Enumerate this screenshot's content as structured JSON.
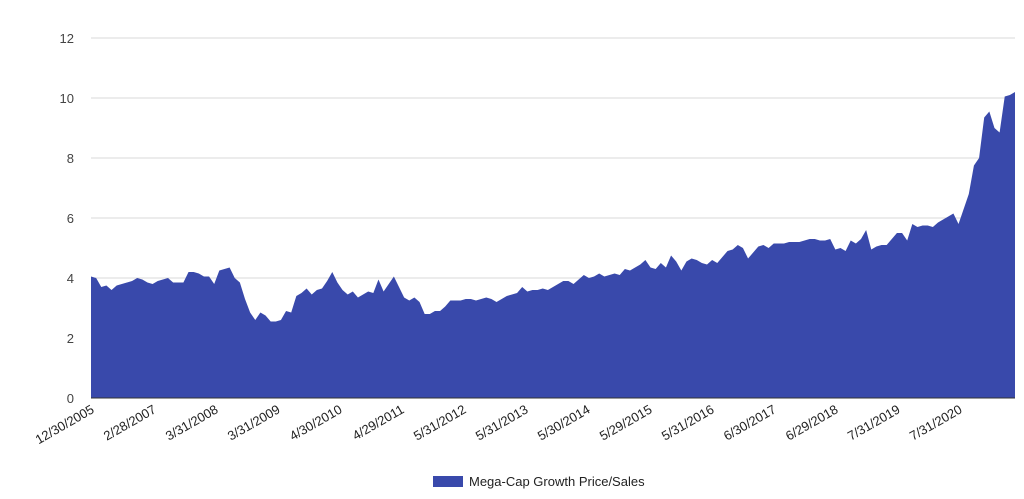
{
  "chart_data": {
    "type": "area",
    "title": "",
    "xlabel": "",
    "ylabel": "",
    "ylim": [
      0,
      12
    ],
    "yticks": [
      0,
      2,
      4,
      6,
      8,
      10,
      12
    ],
    "grid": "horizontal",
    "legend_position": "bottom",
    "x_tick_labels": [
      "12/30/2005",
      "2/28/2007",
      "3/31/2008",
      "3/31/2009",
      "4/30/2010",
      "4/29/2011",
      "5/31/2012",
      "5/31/2013",
      "5/30/2014",
      "5/29/2015",
      "5/31/2016",
      "6/30/2017",
      "6/29/2018",
      "7/31/2019",
      "7/31/2020"
    ],
    "series": [
      {
        "name": "Mega-Cap Growth Price/Sales",
        "color": "#3949AB",
        "x_start": "12/30/2005",
        "x_end": "2021 (latest month)",
        "frequency": "monthly",
        "values": [
          4.05,
          4.0,
          3.7,
          3.75,
          3.6,
          3.75,
          3.8,
          3.85,
          3.9,
          4.0,
          3.95,
          3.85,
          3.8,
          3.9,
          3.95,
          4.0,
          3.85,
          3.85,
          3.85,
          4.2,
          4.2,
          4.15,
          4.05,
          4.05,
          3.8,
          4.25,
          4.3,
          4.35,
          4.0,
          3.85,
          3.3,
          2.85,
          2.6,
          2.85,
          2.75,
          2.55,
          2.55,
          2.6,
          2.9,
          2.85,
          3.4,
          3.5,
          3.65,
          3.45,
          3.6,
          3.65,
          3.9,
          4.2,
          3.85,
          3.6,
          3.45,
          3.55,
          3.35,
          3.45,
          3.55,
          3.5,
          3.95,
          3.55,
          3.8,
          4.05,
          3.7,
          3.35,
          3.25,
          3.35,
          3.2,
          2.8,
          2.8,
          2.9,
          2.9,
          3.05,
          3.25,
          3.25,
          3.25,
          3.3,
          3.3,
          3.25,
          3.3,
          3.35,
          3.3,
          3.2,
          3.3,
          3.4,
          3.45,
          3.5,
          3.7,
          3.55,
          3.6,
          3.6,
          3.65,
          3.6,
          3.7,
          3.8,
          3.9,
          3.9,
          3.8,
          3.95,
          4.1,
          4.0,
          4.05,
          4.15,
          4.05,
          4.1,
          4.15,
          4.1,
          4.3,
          4.25,
          4.35,
          4.45,
          4.6,
          4.35,
          4.3,
          4.5,
          4.35,
          4.75,
          4.55,
          4.25,
          4.55,
          4.65,
          4.6,
          4.5,
          4.45,
          4.6,
          4.5,
          4.7,
          4.9,
          4.95,
          5.1,
          5.0,
          4.65,
          4.85,
          5.05,
          5.1,
          5.0,
          5.15,
          5.15,
          5.15,
          5.2,
          5.2,
          5.2,
          5.25,
          5.3,
          5.3,
          5.25,
          5.25,
          5.3,
          4.95,
          5.0,
          4.9,
          5.25,
          5.15,
          5.3,
          5.6,
          4.95,
          5.05,
          5.1,
          5.1,
          5.3,
          5.5,
          5.5,
          5.25,
          5.8,
          5.7,
          5.75,
          5.75,
          5.7,
          5.85,
          5.95,
          6.05,
          6.15,
          5.8,
          6.3,
          6.8,
          7.75,
          8.0,
          9.35,
          9.55,
          9.0,
          8.85,
          10.05,
          10.1,
          10.2
        ]
      }
    ]
  }
}
